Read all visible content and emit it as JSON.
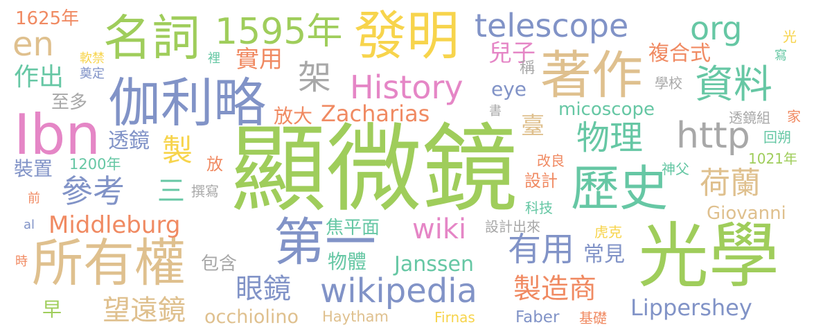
{
  "colors": {
    "green": "#9fcd5b",
    "yellow": "#f7d44c",
    "blue": "#8193c7",
    "tan": "#dfc08e",
    "pink": "#e586c6",
    "teal": "#66c7a4",
    "orange": "#f08a62",
    "gray": "#a8a8a8"
  },
  "words": [
    "顯微鏡",
    "光學",
    "伽利略",
    "Ibn",
    "所有權",
    "發明",
    "著作",
    "名詞",
    "第一",
    "1595年",
    "歷史",
    "資料",
    "History",
    "telescope",
    "org",
    "http",
    "en",
    "參考",
    "wikipedia",
    "有用",
    "物理",
    "荷蘭",
    "Middleburg",
    "wiki",
    "製造商",
    "Zacharias",
    "Lippershey",
    "Janssen",
    "眼鏡",
    "望遠鏡",
    "架",
    "製",
    "實用",
    "兒子",
    "作出",
    "複合式",
    "1625年",
    "occhiolino",
    "micoscope",
    "Giovanni",
    "三",
    "焦平面",
    "臺",
    "常見",
    "物體",
    "eye",
    "放大",
    "至多",
    "透鏡",
    "裝置",
    "1200年",
    "包含",
    "設計",
    "Faber",
    "基礎",
    "Haytham",
    "Firnas",
    "撰寫",
    "設計出來",
    "早",
    "學校",
    "透鏡組",
    "回朔",
    "1021年",
    "神父",
    "改良",
    "科技",
    "虎克",
    "家",
    "al",
    "前",
    "時",
    "裡",
    "軟禁",
    "奠定",
    "光",
    "寫",
    "稱",
    "書",
    "放"
  ]
}
